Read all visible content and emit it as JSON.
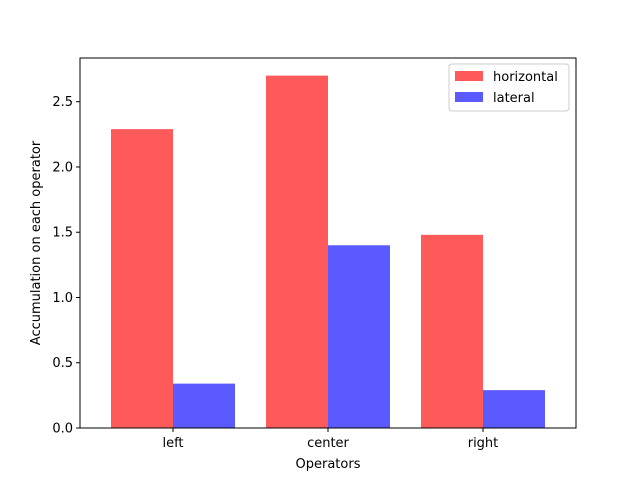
{
  "chart_data": {
    "type": "bar",
    "title": "",
    "xlabel": "Operators",
    "ylabel": "Accumulation on each operator",
    "categories": [
      "left",
      "center",
      "right"
    ],
    "series": [
      {
        "name": "horizontal",
        "values": [
          2.29,
          2.7,
          1.48
        ],
        "color": "#ff5a5a"
      },
      {
        "name": "lateral",
        "values": [
          0.34,
          1.4,
          0.29
        ],
        "color": "#5a5aff"
      }
    ],
    "ylim": [
      0,
      2.835
    ],
    "yticks": [
      0.0,
      0.5,
      1.0,
      1.5,
      2.0,
      2.5
    ],
    "ytick_labels": [
      "0.0",
      "0.5",
      "1.0",
      "1.5",
      "2.0",
      "2.5"
    ],
    "grid": false,
    "legend_position": "top-right"
  }
}
